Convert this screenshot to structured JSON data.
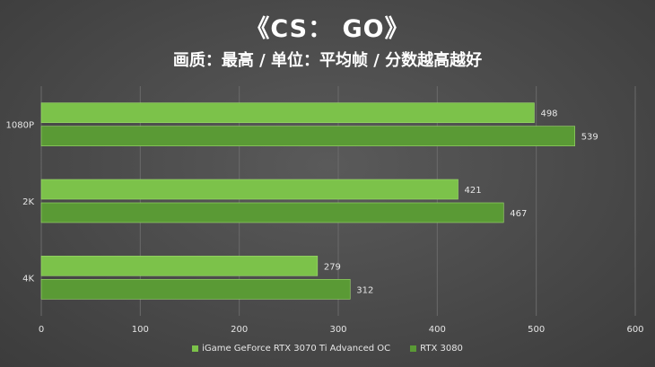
{
  "title": "《CS： GO》",
  "subtitle": "画质：最高 / 单位：平均帧 / 分数越高越好",
  "colors": {
    "series1": "#7cc24a",
    "series2": "#5a9a35",
    "grid": "#6a6a6a",
    "text": "#e6e6e6"
  },
  "chart_data": {
    "type": "bar",
    "orientation": "horizontal",
    "categories": [
      "1080P",
      "2K",
      "4K"
    ],
    "series": [
      {
        "name": "iGame GeForce RTX 3070 Ti Advanced OC",
        "values": [
          498,
          421,
          279
        ]
      },
      {
        "name": "RTX 3080",
        "values": [
          539,
          467,
          312
        ]
      }
    ],
    "xlim": [
      0,
      600
    ],
    "x_ticks": [
      "0",
      "100",
      "200",
      "300",
      "400",
      "500",
      "600"
    ],
    "grid": true,
    "legend": "bottom"
  }
}
